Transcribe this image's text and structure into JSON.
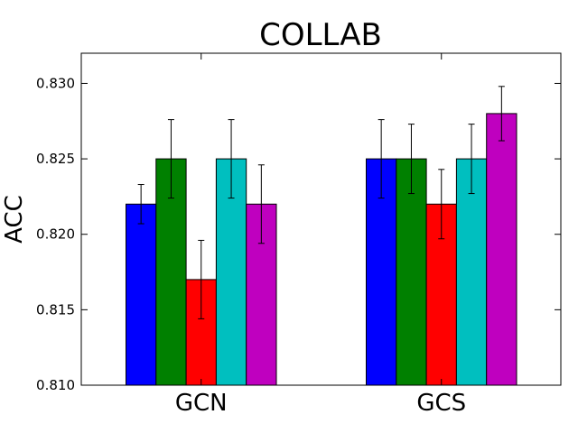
{
  "chart_data": {
    "type": "bar",
    "title": "COLLAB",
    "xlabel": "",
    "ylabel": "ACC",
    "ylim": [
      0.81,
      0.832
    ],
    "yticks": [
      "0.810",
      "0.815",
      "0.820",
      "0.825",
      "0.830"
    ],
    "ytick_values": [
      0.81,
      0.815,
      0.82,
      0.825,
      0.83
    ],
    "categories": [
      "GCN",
      "GCS"
    ],
    "grid": false,
    "series": [
      {
        "color": "#0000ff",
        "values": [
          0.822,
          0.825
        ],
        "errors": [
          0.0013,
          0.0026
        ]
      },
      {
        "color": "#008000",
        "values": [
          0.825,
          0.825
        ],
        "errors": [
          0.0026,
          0.0023
        ]
      },
      {
        "color": "#ff0000",
        "values": [
          0.817,
          0.822
        ],
        "errors": [
          0.0026,
          0.0023
        ]
      },
      {
        "color": "#00bfbf",
        "values": [
          0.825,
          0.825
        ],
        "errors": [
          0.0026,
          0.0023
        ]
      },
      {
        "color": "#bf00bf",
        "values": [
          0.822,
          0.828
        ],
        "errors": [
          0.0026,
          0.0018
        ]
      }
    ]
  }
}
